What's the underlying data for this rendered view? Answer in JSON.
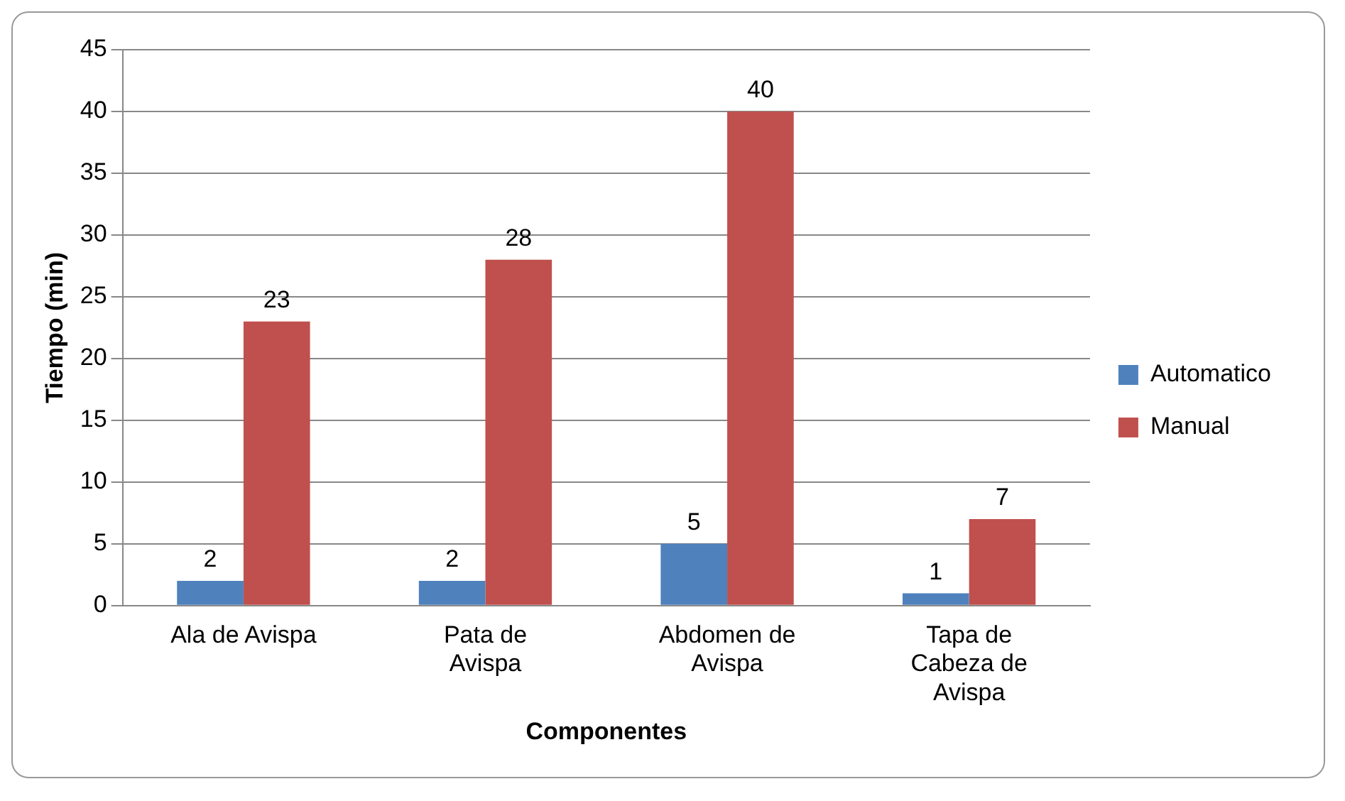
{
  "chart_data": {
    "type": "bar",
    "xlabel": "Componentes",
    "ylabel": "Tiempo (min)",
    "categories": [
      "Ala de Avispa",
      "Pata de Avispa",
      "Abdomen de Avispa",
      "Tapa de Cabeza de Avispa"
    ],
    "series": [
      {
        "name": "Automatico",
        "color": "#4f81bd",
        "values": [
          2,
          2,
          5,
          1
        ]
      },
      {
        "name": "Manual",
        "color": "#c0504d",
        "values": [
          23,
          28,
          40,
          7
        ]
      }
    ],
    "ylim": [
      0,
      45
    ],
    "yticks": [
      0,
      5,
      10,
      15,
      20,
      25,
      30,
      35,
      40,
      45
    ],
    "grid": "y",
    "legend": "right",
    "data_labels": true
  }
}
